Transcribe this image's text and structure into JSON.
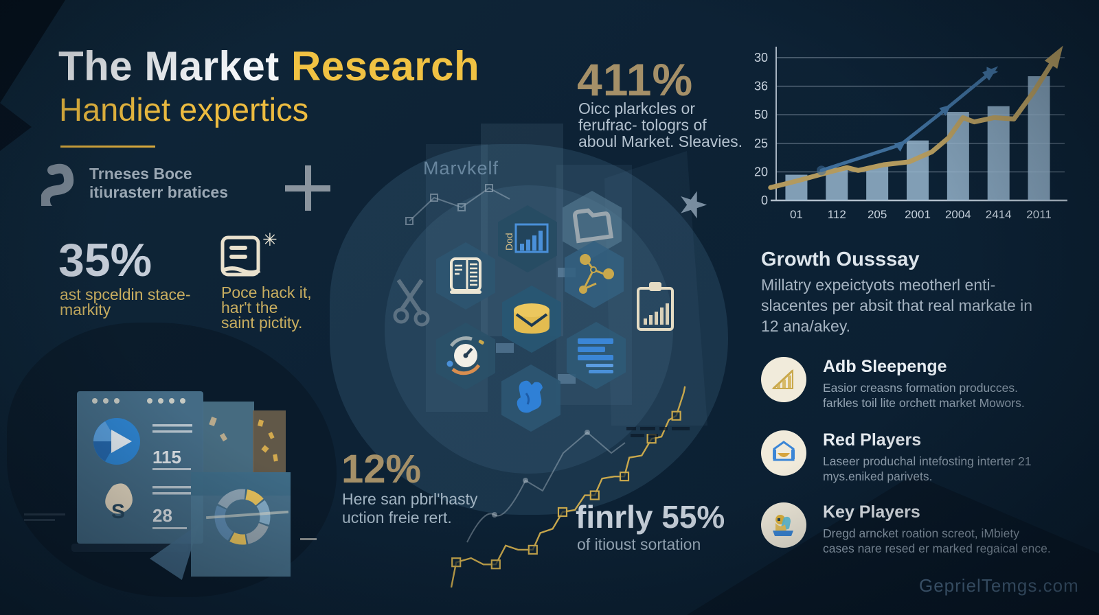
{
  "header": {
    "title_main": "The Market",
    "title_accent": "Research",
    "subtitle": "Handiet expertics"
  },
  "brand": {
    "line1": "Trneses Boce",
    "line2": "itiurasterr bratices"
  },
  "decor": {
    "plus": "+",
    "star": "★",
    "center_label": "Marvkelf",
    "hex_chart_label": "Dod",
    "note_asterisk": "✳"
  },
  "stats": {
    "s411": {
      "value": "411%",
      "caption": "Oicc plarkcles or\nferufrac- tologrs of\naboul Market. Sleavies."
    },
    "s35": {
      "value": "35%",
      "caption": "ast spceldin stace-\nmarkity"
    },
    "s12": {
      "value": "12%",
      "caption": "Here san pbrl'hasty\nuction freie rert."
    },
    "s55": {
      "value": "finrly 55%",
      "caption": "of itioust sortation"
    }
  },
  "note": {
    "text": "Poce hack it,\nhar't the\nsaint pictity."
  },
  "growth": {
    "heading": "Growth Ousssay",
    "body": "Millatry expeictyots  meotherl enti-slacentes per absit that real markate in 12 ana/akey."
  },
  "players": [
    {
      "title": "Adb Sleepenge",
      "body": "Easior creasns formation producces. farkles toil lite orchett market Mowors.",
      "icon": "growth-bars-icon"
    },
    {
      "title": "Red Players",
      "body": "Laseer produchal intefosting interter 21 mys.eniked parivets.",
      "icon": "award-icon"
    },
    {
      "title": "Key Players",
      "body": "Dregd arncket roation screot, iMbiety cases nare resed er marked regaical ence.",
      "icon": "person-icon"
    }
  ],
  "mock_window": {
    "value_top": "115",
    "value_bottom": "28",
    "letter": "S"
  },
  "watermark": "GeprielTemgs.com",
  "chart_data": [
    {
      "type": "bar",
      "title": "",
      "position": "top-right",
      "categories": [
        "01",
        "112",
        "205",
        "2001",
        "2004",
        "2414",
        "2011"
      ],
      "bar_heights_pct": [
        18,
        23,
        24,
        42,
        62,
        66,
        87
      ],
      "y_ticks": [
        "30",
        "36",
        "50",
        "25",
        "20",
        "0"
      ],
      "bar_color": "#9bbad2",
      "grid": true,
      "legend": "none",
      "lines": [
        {
          "name": "gold-trend",
          "color": "#b39a5e",
          "width": 7,
          "arrow": true,
          "points_pct": [
            [
              -2,
              9
            ],
            [
              8,
              14
            ],
            [
              19,
              20
            ],
            [
              25,
              23
            ],
            [
              29,
              21
            ],
            [
              38,
              25
            ],
            [
              47,
              27
            ],
            [
              55,
              34
            ],
            [
              61,
              44
            ],
            [
              66,
              58
            ],
            [
              70,
              55
            ],
            [
              77,
              58
            ],
            [
              84,
              57
            ],
            [
              91,
              76
            ],
            [
              99,
              101
            ]
          ]
        },
        {
          "name": "blue-trend",
          "color": "#3e6d99",
          "width": 5,
          "arrow": true,
          "markers": "triangle",
          "points_pct": [
            [
              16,
              21
            ],
            [
              44,
              39
            ],
            [
              60,
              64
            ],
            [
              76,
              90
            ]
          ]
        }
      ]
    },
    {
      "type": "pie",
      "donut": true,
      "position": "bottom-left-panel",
      "start_angle_deg": -80,
      "segments": [
        {
          "value": 12,
          "color": "#e9c35c"
        },
        {
          "value": 16,
          "color": "#86aec9"
        },
        {
          "value": 17,
          "color": "#97a6b0"
        },
        {
          "value": 11,
          "color": "#e9c35c"
        },
        {
          "value": 24,
          "color": "#5d89ae"
        },
        {
          "value": 20,
          "color": "#8fa5b5"
        }
      ]
    },
    {
      "type": "line",
      "style": "step-gold-squares",
      "position": "bottom-center",
      "color": "#c9a84c",
      "marker": "square",
      "points_pct": [
        [
          0,
          4
        ],
        [
          2,
          16
        ],
        [
          8,
          18
        ],
        [
          13,
          15
        ],
        [
          18,
          15
        ],
        [
          22,
          24
        ],
        [
          27,
          22
        ],
        [
          33,
          22
        ],
        [
          36,
          30
        ],
        [
          41,
          32
        ],
        [
          45,
          40
        ],
        [
          50,
          41
        ],
        [
          54,
          48
        ],
        [
          58,
          48
        ],
        [
          61,
          56
        ],
        [
          66,
          57
        ],
        [
          70,
          57
        ],
        [
          72,
          66
        ],
        [
          77,
          67
        ],
        [
          81,
          75
        ],
        [
          85,
          76
        ],
        [
          88,
          84
        ],
        [
          91,
          86
        ],
        [
          94,
          97
        ],
        [
          94.5,
          100
        ]
      ]
    }
  ]
}
